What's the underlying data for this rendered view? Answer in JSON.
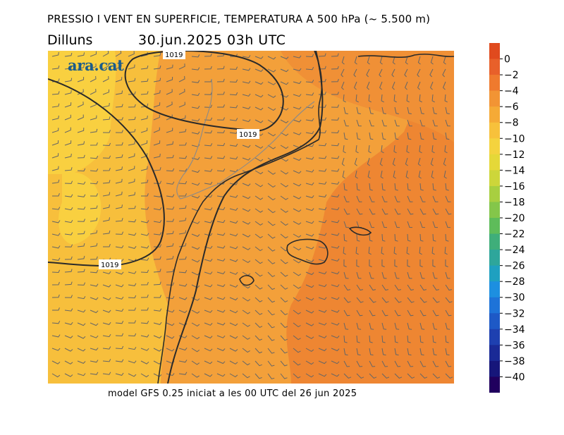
{
  "title": "PRESSIO I VENT EN SUPERFICIE, TEMPERATURA A 500 hPa (~ 5.500 m)",
  "day": "Dilluns",
  "datetime": "30.jun.2025 03h UTC",
  "brand": "ara.cat",
  "footer": "model GFS 0.25 iniciat a les 00 UTC del 26 jun 2025",
  "isobar_labels": [
    "1019",
    "1019",
    "1019"
  ],
  "colorbar": {
    "labels": [
      "0",
      "−2",
      "−4",
      "−6",
      "−8",
      "−10",
      "−12",
      "−14",
      "−16",
      "−18",
      "−20",
      "−22",
      "−24",
      "−26",
      "−28",
      "−30",
      "−32",
      "−34",
      "−36",
      "−38",
      "−40"
    ],
    "colors": [
      "#e04a1e",
      "#e8602a",
      "#ef7a2e",
      "#f29434",
      "#f5aa36",
      "#f7c13b",
      "#f4d33e",
      "#e5d838",
      "#cdd63a",
      "#a8cf40",
      "#84c64a",
      "#5ebc5a",
      "#3fae7a",
      "#2ea69b",
      "#1fa0c0",
      "#1d8fe0",
      "#1e73d8",
      "#1e59c6",
      "#1e40b0",
      "#1a2a96",
      "#16167a",
      "#20005e"
    ]
  },
  "temperature_zones": {
    "warm_core": "#ee8632",
    "mid": "#f3a03a",
    "cool_west": "#f7bf3c",
    "coolest_patch": "#f9d040"
  },
  "contour_color": "#2a2a2a",
  "barb_color": "#666666"
}
